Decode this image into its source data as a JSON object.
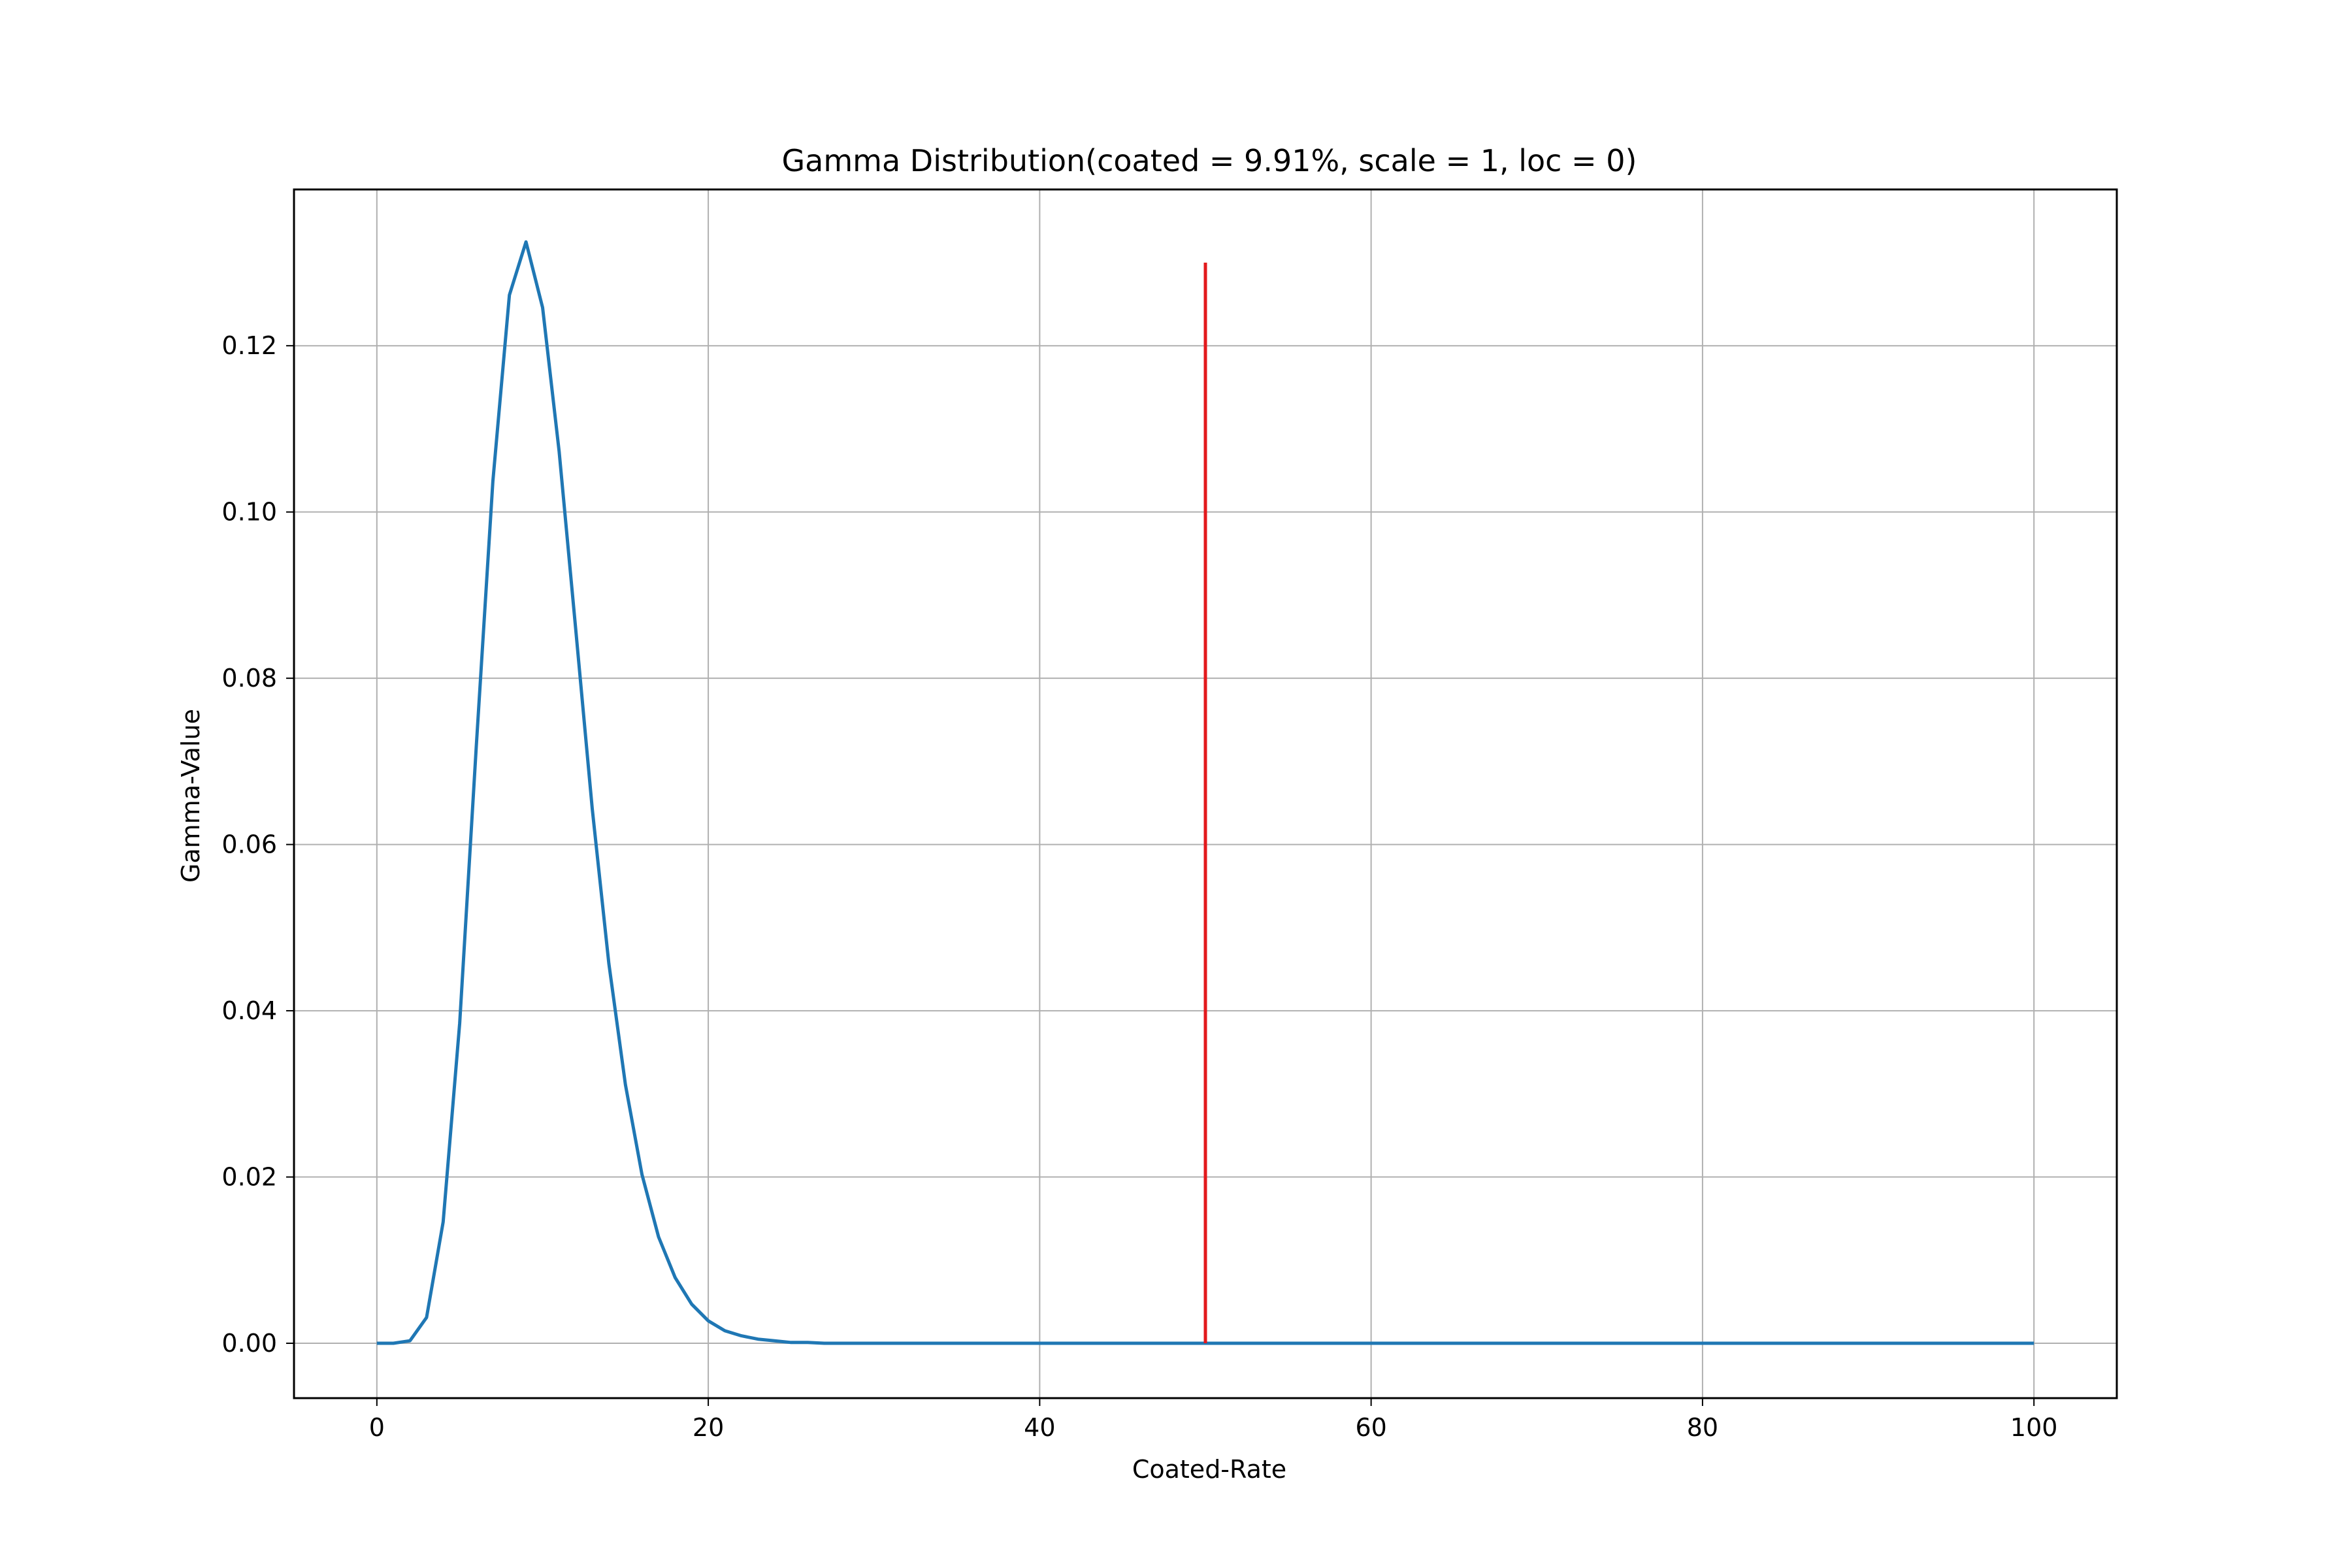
{
  "chart_data": {
    "type": "line",
    "title": "Gamma Distribution(coated = 9.91%, scale = 1, loc = 0)",
    "xlabel": "Coated-Rate",
    "ylabel": "Gamma-Value",
    "xlim": [
      -5,
      105
    ],
    "ylim": [
      -0.0066,
      0.1388
    ],
    "x_ticks": [
      0,
      20,
      40,
      60,
      80,
      100
    ],
    "x_tick_labels": [
      "0",
      "20",
      "40",
      "60",
      "80",
      "100"
    ],
    "y_ticks": [
      0.0,
      0.02,
      0.04,
      0.06,
      0.08,
      0.1,
      0.12
    ],
    "y_tick_labels": [
      "0.00",
      "0.02",
      "0.04",
      "0.06",
      "0.08",
      "0.10",
      "0.12"
    ],
    "grid": true,
    "series": [
      {
        "color": "#1f77b4",
        "x": [
          0,
          1,
          2,
          3,
          4,
          5,
          6,
          7,
          8,
          9,
          10,
          11,
          12,
          13,
          14,
          15,
          16,
          17,
          18,
          19,
          20,
          21,
          22,
          23,
          24,
          25,
          26,
          27,
          28,
          29,
          30,
          35,
          40,
          50,
          60,
          70,
          80,
          90,
          100
        ],
        "y": [
          0.0,
          0.0,
          0.0003,
          0.0031,
          0.0146,
          0.0385,
          0.0718,
          0.1037,
          0.1261,
          0.1325,
          0.1246,
          0.1073,
          0.0859,
          0.0643,
          0.0457,
          0.0311,
          0.0203,
          0.0128,
          0.0079,
          0.0047,
          0.0027,
          0.0015,
          0.0009,
          0.0005,
          0.0003,
          0.0001,
          0.0001,
          0.0,
          0.0,
          0.0,
          0.0,
          0.0,
          0.0,
          0.0,
          0.0,
          0.0,
          0.0,
          0.0,
          0.0
        ]
      },
      {
        "color": "#e31a1c",
        "x": [
          50,
          50
        ],
        "y": [
          0.0,
          0.13
        ]
      }
    ]
  }
}
